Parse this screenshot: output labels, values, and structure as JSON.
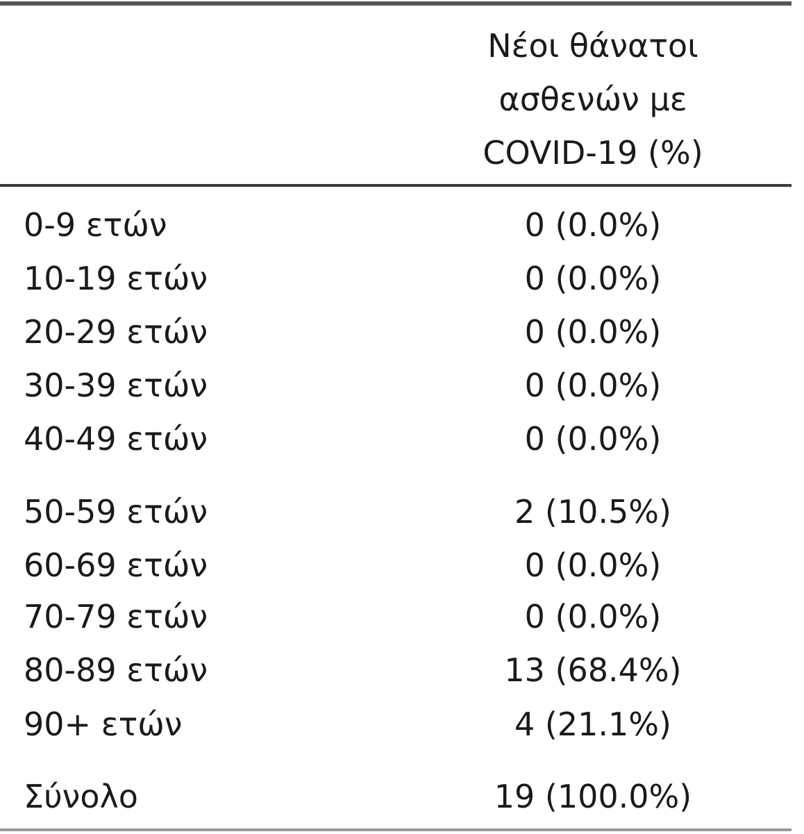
{
  "table": {
    "header": {
      "col1": "",
      "col2_lines": [
        "Νέοι θάνατοι",
        "ασθενών με",
        "COVID-19 (%)"
      ]
    },
    "rows": [
      {
        "label": "0-9 ετών",
        "value": "0 (0.0%)"
      },
      {
        "label": "10-19 ετών",
        "value": "0 (0.0%)"
      },
      {
        "label": "20-29 ετών",
        "value": "0 (0.0%)"
      },
      {
        "label": "30-39 ετών",
        "value": "0 (0.0%)"
      },
      {
        "label": "40-49 ετών",
        "value": "0 (0.0%)"
      },
      {
        "label": "50-59 ετών",
        "value": "2 (10.5%)"
      },
      {
        "label": "60-69 ετών",
        "value": "0 (0.0%)"
      },
      {
        "label": "70-79 ετών",
        "value": "0 (0.0%)"
      },
      {
        "label": "80-89 ετών",
        "value": "13 (68.4%)"
      },
      {
        "label": "90+ ετών",
        "value": "4 (21.1%)"
      }
    ],
    "total": {
      "label": "Σύνολο",
      "value": "19 (100.0%)"
    }
  }
}
